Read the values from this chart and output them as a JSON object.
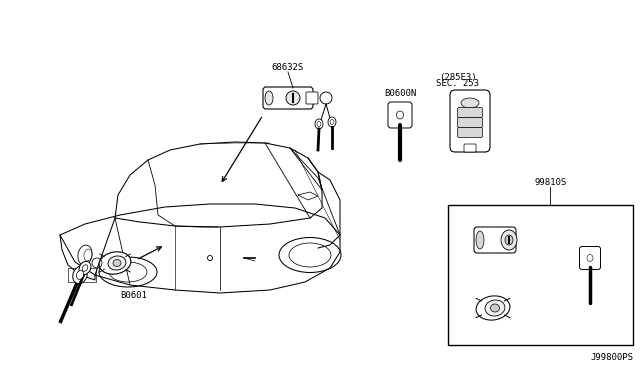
{
  "bg_color": "#ffffff",
  "lc": "#000000",
  "figsize": [
    6.4,
    3.72
  ],
  "dpi": 100,
  "labels": {
    "top_lock": "68632S",
    "blank_key": "B0600N",
    "remote_line1": "SEC. 253",
    "remote_line2": "(285E3)",
    "door_lock": "B0601",
    "keyset": "99810S",
    "part_num": "J99800PS"
  }
}
